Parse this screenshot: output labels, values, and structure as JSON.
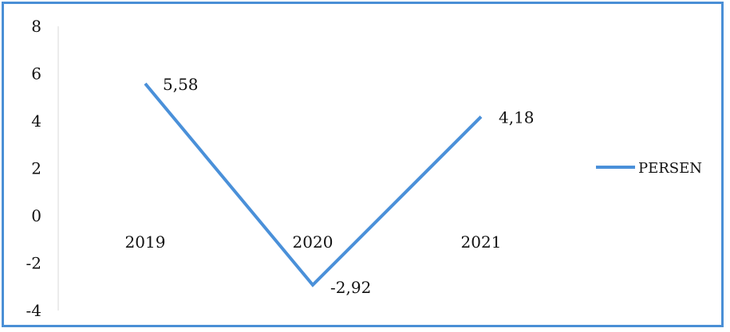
{
  "chart_data": {
    "type": "line",
    "categories": [
      "2019",
      "2020",
      "2021"
    ],
    "series": [
      {
        "name": "PERSEN",
        "values": [
          5.58,
          -2.92,
          4.18
        ],
        "labels": [
          "5,58",
          "-2,92",
          "4,18"
        ],
        "color": "#4a90d9"
      }
    ],
    "yticks": [
      "8",
      "6",
      "4",
      "2",
      "0",
      "-2",
      "-4"
    ],
    "ylim": [
      -4,
      8
    ],
    "legend_position": "right",
    "grid": false,
    "frame_color": "#4a8fd6"
  }
}
